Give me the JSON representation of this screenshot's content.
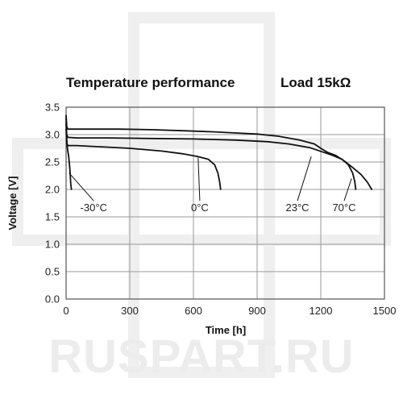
{
  "watermark": {
    "text": "RUSPART.RU"
  },
  "chart_data": {
    "type": "line",
    "title": "Temperature performance",
    "subtitle": "Load 15kΩ",
    "xlabel": "Time [h]",
    "ylabel": "Voltage [V]",
    "xlim": [
      0,
      1500
    ],
    "ylim": [
      0.0,
      3.5
    ],
    "xticks": [
      0,
      300,
      600,
      900,
      1200,
      1500
    ],
    "xtick_labels": [
      "0",
      "300",
      "600",
      "900",
      "1200",
      "1500"
    ],
    "yticks": [
      0.0,
      0.5,
      1.0,
      1.5,
      2.0,
      2.5,
      3.0,
      3.5
    ],
    "ytick_labels": [
      "0.0",
      "0.5",
      "1.0",
      "1.5",
      "2.0",
      "2.5",
      "3.0",
      "3.5"
    ],
    "grid": true,
    "legend": "none",
    "series": [
      {
        "name": "-30°C",
        "points": [
          [
            0,
            3.3
          ],
          [
            2,
            3.0
          ],
          [
            5,
            2.8
          ],
          [
            8,
            2.7
          ],
          [
            12,
            2.6
          ],
          [
            16,
            2.45
          ],
          [
            19,
            2.3
          ],
          [
            22,
            2.1
          ],
          [
            25,
            2.0
          ]
        ]
      },
      {
        "name": "0°C",
        "points": [
          [
            0,
            3.1
          ],
          [
            3,
            2.85
          ],
          [
            8,
            2.8
          ],
          [
            50,
            2.8
          ],
          [
            150,
            2.78
          ],
          [
            300,
            2.75
          ],
          [
            450,
            2.7
          ],
          [
            550,
            2.65
          ],
          [
            620,
            2.6
          ],
          [
            670,
            2.55
          ],
          [
            700,
            2.45
          ],
          [
            715,
            2.3
          ],
          [
            723,
            2.15
          ],
          [
            728,
            2.0
          ]
        ]
      },
      {
        "name": "23°C",
        "points": [
          [
            0,
            3.2
          ],
          [
            3,
            3.0
          ],
          [
            8,
            2.95
          ],
          [
            50,
            2.94
          ],
          [
            200,
            2.94
          ],
          [
            400,
            2.93
          ],
          [
            600,
            2.92
          ],
          [
            800,
            2.9
          ],
          [
            950,
            2.87
          ],
          [
            1050,
            2.83
          ],
          [
            1150,
            2.76
          ],
          [
            1250,
            2.63
          ],
          [
            1300,
            2.55
          ],
          [
            1330,
            2.45
          ],
          [
            1350,
            2.3
          ],
          [
            1360,
            2.15
          ],
          [
            1365,
            2.0
          ]
        ]
      },
      {
        "name": "70°C",
        "points": [
          [
            0,
            3.35
          ],
          [
            3,
            3.15
          ],
          [
            8,
            3.1
          ],
          [
            100,
            3.1
          ],
          [
            250,
            3.1
          ],
          [
            400,
            3.09
          ],
          [
            550,
            3.07
          ],
          [
            700,
            3.05
          ],
          [
            800,
            3.03
          ],
          [
            900,
            3.01
          ],
          [
            1000,
            2.97
          ],
          [
            1100,
            2.9
          ],
          [
            1170,
            2.83
          ],
          [
            1200,
            2.75
          ],
          [
            1230,
            2.68
          ],
          [
            1270,
            2.62
          ],
          [
            1310,
            2.52
          ],
          [
            1350,
            2.4
          ],
          [
            1390,
            2.27
          ],
          [
            1420,
            2.13
          ],
          [
            1440,
            2.0
          ]
        ]
      }
    ],
    "annotations": [
      {
        "text": "-30°C",
        "x": 130,
        "y": 1.6,
        "pointer": [
          14,
          2.3
        ]
      },
      {
        "text": "0°C",
        "x": 630,
        "y": 1.6,
        "pointer": [
          622,
          2.58
        ]
      },
      {
        "text": "23°C",
        "x": 1090,
        "y": 1.6,
        "pointer": [
          1155,
          2.6
        ]
      },
      {
        "text": "70°C",
        "x": 1310,
        "y": 1.6,
        "pointer": [
          1345,
          2.2
        ]
      }
    ]
  }
}
